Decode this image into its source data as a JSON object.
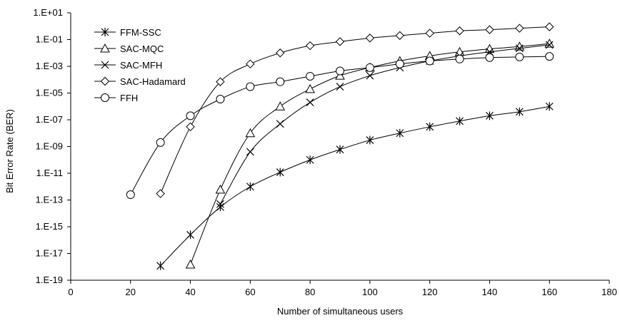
{
  "chart_data": {
    "type": "line",
    "title": "",
    "xlabel": "Number of simultaneous users",
    "ylabel": "Bit Error Rate (BER)",
    "xlim": [
      0,
      180
    ],
    "xticks": [
      0,
      20,
      40,
      60,
      80,
      100,
      120,
      140,
      160,
      180
    ],
    "yscale": "log",
    "ylim": [
      1e-19,
      10
    ],
    "yticks": [
      {
        "value": 10,
        "label": "1.E+01"
      },
      {
        "value": 0.1,
        "label": "1.E-01"
      },
      {
        "value": 0.001,
        "label": "1.E-03"
      },
      {
        "value": 1e-05,
        "label": "1.E-05"
      },
      {
        "value": 1e-07,
        "label": "1.E-07"
      },
      {
        "value": 1e-09,
        "label": "1.E-09"
      },
      {
        "value": 1e-11,
        "label": "1.E-11"
      },
      {
        "value": 1e-13,
        "label": "1.E-13"
      },
      {
        "value": 1e-15,
        "label": "1.E-15"
      },
      {
        "value": 1e-17,
        "label": "1.E-17"
      },
      {
        "value": 1e-19,
        "label": "1.E-19"
      }
    ],
    "grid": false,
    "legend_position": "top-left",
    "series": [
      {
        "name": "FFM-SSC",
        "marker": "asterisk",
        "x": [
          30,
          40,
          50,
          60,
          70,
          80,
          90,
          100,
          110,
          120,
          130,
          140,
          150,
          160
        ],
        "y": [
          1.2e-18,
          2.5e-16,
          3e-14,
          1e-12,
          1.2e-11,
          1e-10,
          6e-10,
          3e-09,
          1e-08,
          3e-08,
          8e-08,
          2e-07,
          4e-07,
          1e-06
        ]
      },
      {
        "name": "SAC-MQC",
        "marker": "triangle",
        "x": [
          40,
          50,
          60,
          70,
          80,
          90,
          100,
          110,
          120,
          130,
          140,
          150,
          160
        ],
        "y": [
          1.5e-18,
          6e-13,
          1e-08,
          1e-06,
          2e-05,
          0.0002,
          0.0008,
          0.0025,
          0.006,
          0.012,
          0.02,
          0.03,
          0.05
        ]
      },
      {
        "name": "SAC-MFH",
        "marker": "x",
        "x": [
          50,
          60,
          70,
          80,
          90,
          100,
          110,
          120,
          130,
          140,
          150,
          160
        ],
        "y": [
          5e-14,
          4e-10,
          5e-08,
          2e-06,
          3e-05,
          0.0002,
          0.0008,
          0.0025,
          0.006,
          0.012,
          0.022,
          0.04
        ]
      },
      {
        "name": "SAC-Hadamard",
        "marker": "diamond",
        "x": [
          30,
          40,
          50,
          60,
          70,
          80,
          90,
          100,
          110,
          120,
          130,
          140,
          150,
          160
        ],
        "y": [
          3e-13,
          3e-08,
          7e-05,
          0.0015,
          0.01,
          0.035,
          0.07,
          0.13,
          0.2,
          0.3,
          0.45,
          0.55,
          0.7,
          0.9
        ]
      },
      {
        "name": "FFH",
        "marker": "circle",
        "x": [
          20,
          30,
          40,
          50,
          60,
          70,
          80,
          90,
          100,
          110,
          120,
          130,
          140,
          150,
          160
        ],
        "y": [
          2.5e-13,
          2e-09,
          2e-07,
          3.5e-06,
          3e-05,
          7e-05,
          0.00018,
          0.00045,
          0.0008,
          0.0015,
          0.0025,
          0.0035,
          0.0045,
          0.005,
          0.0055
        ]
      }
    ]
  }
}
